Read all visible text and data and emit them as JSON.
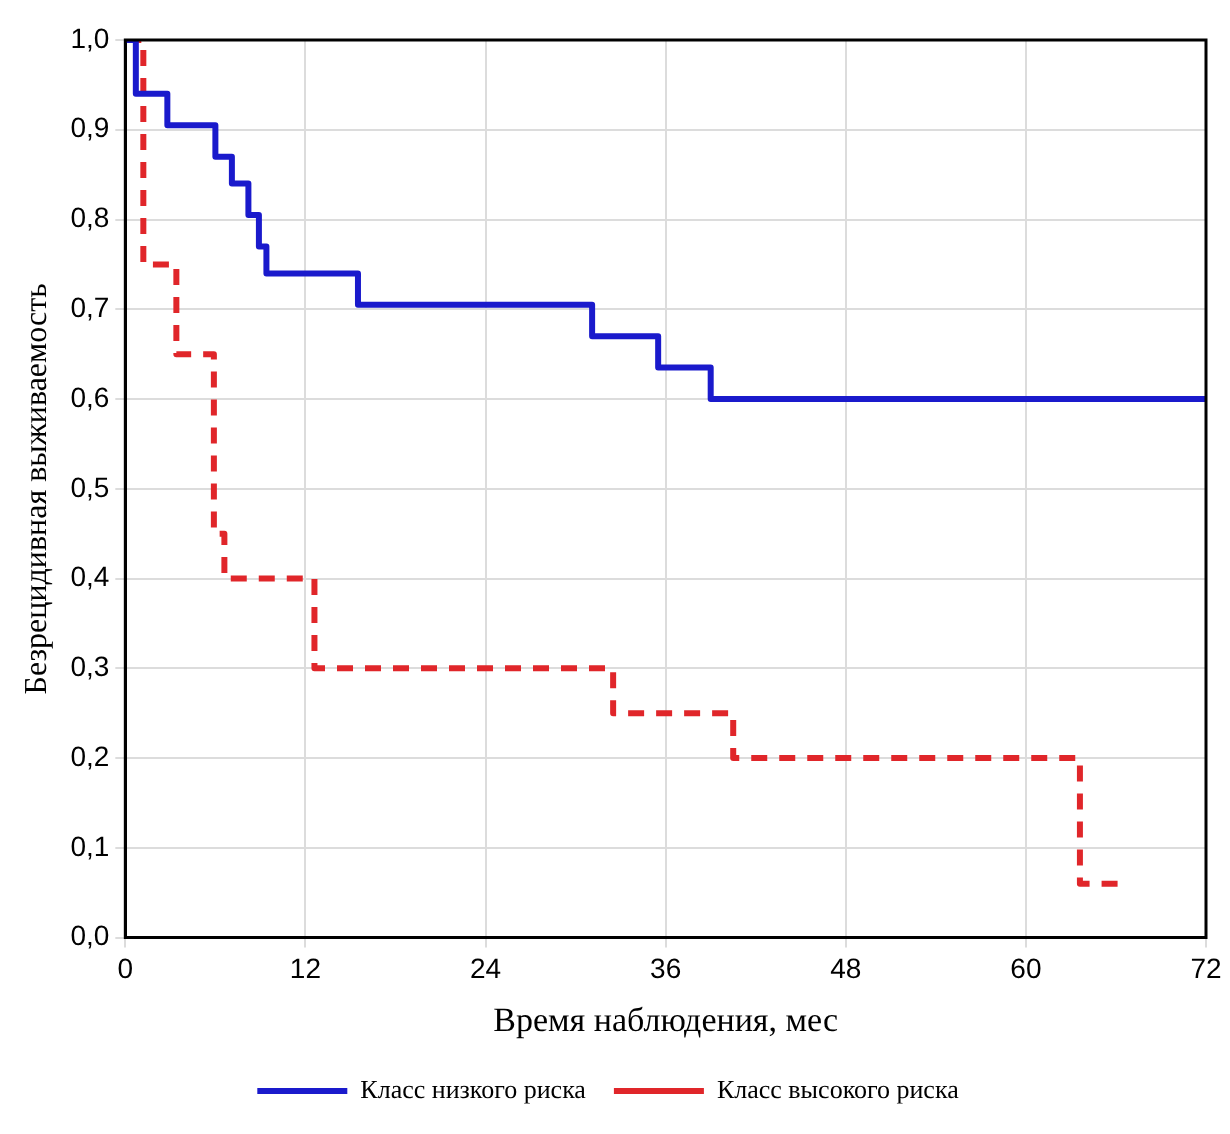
{
  "chart_data": {
    "type": "step",
    "xlabel": "Время наблюдения, мес",
    "ylabel": "Безрецидивная выживаемость",
    "xlim": [
      0,
      72
    ],
    "xticks": [
      0,
      12,
      24,
      36,
      48,
      60,
      72
    ],
    "ylim": [
      0,
      1
    ],
    "yticks": [
      {
        "value": 0,
        "label": "0,0"
      },
      {
        "value": 0.1,
        "label": "0,1"
      },
      {
        "value": 0.2,
        "label": "0,2"
      },
      {
        "value": 0.3,
        "label": "0,3"
      },
      {
        "value": 0.4,
        "label": "0,4"
      },
      {
        "value": 0.5,
        "label": "0,5"
      },
      {
        "value": 0.6,
        "label": "0,6"
      },
      {
        "value": 0.7,
        "label": "0,7"
      },
      {
        "value": 0.8,
        "label": "0,8"
      },
      {
        "value": 0.9,
        "label": "0,9"
      },
      {
        "value": 1,
        "label": "1,0"
      }
    ],
    "grid": true,
    "legend": "bottom",
    "marker": "none",
    "series": [
      {
        "name": "Класс низкого риска",
        "color": "#1a1acc",
        "line_style": "solid",
        "x": [
          0,
          0.7,
          2.8,
          6.0,
          7.1,
          8.2,
          8.9,
          9.4,
          15.5,
          31.1,
          35.5,
          39.0,
          72
        ],
        "values": [
          1.0,
          0.94,
          0.905,
          0.87,
          0.84,
          0.805,
          0.77,
          0.74,
          0.705,
          0.67,
          0.635,
          0.6,
          0.6
        ]
      },
      {
        "name": "Класс высокого риска",
        "color": "#e0262a",
        "line_style": "dashed",
        "x": [
          0,
          1.2,
          3.4,
          5.9,
          6.6,
          12.6,
          32.5,
          40.5,
          63.6,
          66.6
        ],
        "values": [
          1.0,
          0.75,
          0.65,
          0.45,
          0.4,
          0.3,
          0.25,
          0.2,
          0.06,
          0.06
        ]
      }
    ]
  }
}
